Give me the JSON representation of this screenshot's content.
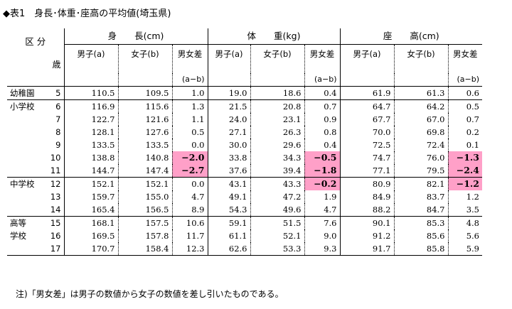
{
  "title": "◆表1　身長･体重･座高の平均値(埼玉県)",
  "header": {
    "kubun": "区 分",
    "sai": "歳",
    "groups": [
      "身　　長(cm)",
      "体　　重(kg)",
      "座　　高(cm)"
    ],
    "male": "男子(a)",
    "female": "女子(b)",
    "diff": "男女差",
    "diff_sub": "(a−b)"
  },
  "rows": [
    {
      "label": "幼稚園",
      "age": "5",
      "h_m": "110.5",
      "h_f": "109.5",
      "h_d": "1.0",
      "w_m": "19.0",
      "w_f": "18.6",
      "w_d": "0.4",
      "s_m": "61.9",
      "s_f": "61.3",
      "s_d": "0.6"
    },
    {
      "label": "小学校",
      "age": "6",
      "h_m": "116.9",
      "h_f": "115.6",
      "h_d": "1.3",
      "w_m": "21.5",
      "w_f": "20.8",
      "w_d": "0.7",
      "s_m": "64.7",
      "s_f": "64.2",
      "s_d": "0.5"
    },
    {
      "label": "",
      "age": "7",
      "h_m": "122.7",
      "h_f": "121.6",
      "h_d": "1.1",
      "w_m": "24.0",
      "w_f": "23.1",
      "w_d": "0.9",
      "s_m": "67.7",
      "s_f": "67.0",
      "s_d": "0.7"
    },
    {
      "label": "",
      "age": "8",
      "h_m": "128.1",
      "h_f": "127.6",
      "h_d": "0.5",
      "w_m": "27.1",
      "w_f": "26.3",
      "w_d": "0.8",
      "s_m": "70.0",
      "s_f": "69.8",
      "s_d": "0.2"
    },
    {
      "label": "",
      "age": "9",
      "h_m": "133.5",
      "h_f": "133.5",
      "h_d": "0.0",
      "w_m": "30.0",
      "w_f": "29.6",
      "w_d": "0.4",
      "s_m": "72.5",
      "s_f": "72.4",
      "s_d": "0.1"
    },
    {
      "label": "",
      "age": "10",
      "h_m": "138.8",
      "h_f": "140.8",
      "h_d": "−2.0",
      "w_m": "33.8",
      "w_f": "34.3",
      "w_d": "−0.5",
      "s_m": "74.7",
      "s_f": "76.0",
      "s_d": "−1.3"
    },
    {
      "label": "",
      "age": "11",
      "h_m": "144.7",
      "h_f": "147.4",
      "h_d": "−2.7",
      "w_m": "37.6",
      "w_f": "39.4",
      "w_d": "−1.8",
      "s_m": "77.1",
      "s_f": "79.5",
      "s_d": "−2.4"
    },
    {
      "label": "中学校",
      "age": "12",
      "h_m": "152.1",
      "h_f": "152.1",
      "h_d": "0.0",
      "w_m": "43.1",
      "w_f": "43.3",
      "w_d": "−0.2",
      "s_m": "80.9",
      "s_f": "82.1",
      "s_d": "−1.2"
    },
    {
      "label": "",
      "age": "13",
      "h_m": "159.7",
      "h_f": "155.0",
      "h_d": "4.7",
      "w_m": "49.1",
      "w_f": "47.2",
      "w_d": "1.9",
      "s_m": "84.9",
      "s_f": "83.7",
      "s_d": "1.2"
    },
    {
      "label": "",
      "age": "14",
      "h_m": "165.4",
      "h_f": "156.5",
      "h_d": "8.9",
      "w_m": "54.3",
      "w_f": "49.6",
      "w_d": "4.7",
      "s_m": "88.2",
      "s_f": "84.7",
      "s_d": "3.5"
    },
    {
      "label": "高等",
      "age": "15",
      "h_m": "168.1",
      "h_f": "157.5",
      "h_d": "10.6",
      "w_m": "59.1",
      "w_f": "51.5",
      "w_d": "7.6",
      "s_m": "90.1",
      "s_f": "85.3",
      "s_d": "4.8"
    },
    {
      "label": "学校",
      "age": "16",
      "h_m": "169.5",
      "h_f": "157.8",
      "h_d": "11.7",
      "w_m": "61.1",
      "w_f": "52.1",
      "w_d": "9.0",
      "s_m": "91.2",
      "s_f": "85.6",
      "s_d": "5.6"
    },
    {
      "label": "",
      "age": "17",
      "h_m": "170.7",
      "h_f": "158.4",
      "h_d": "12.3",
      "w_m": "62.6",
      "w_f": "53.3",
      "w_d": "9.3",
      "s_m": "91.7",
      "s_f": "85.8",
      "s_d": "5.9"
    }
  ],
  "highlight_color": "#ffa0c8",
  "note": "注)「男女差」は男子の数値から女子の数値を差し引いたものである。"
}
